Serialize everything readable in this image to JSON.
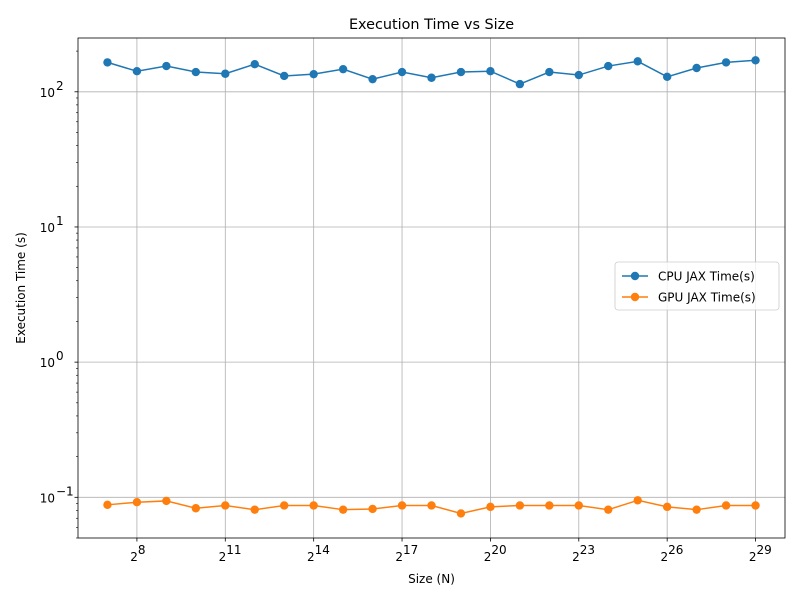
{
  "chart_data": {
    "type": "line",
    "title": "Execution Time vs Size",
    "xlabel": "Size (N)",
    "ylabel": "Execution Time (s)",
    "x_scale": "log2",
    "y_scale": "log10",
    "xlim": [
      64,
      1073741824
    ],
    "ylim": [
      0.05,
      250
    ],
    "x_ticks": [
      {
        "base": "2",
        "exp": "8",
        "value": 256
      },
      {
        "base": "2",
        "exp": "11",
        "value": 2048
      },
      {
        "base": "2",
        "exp": "14",
        "value": 16384
      },
      {
        "base": "2",
        "exp": "17",
        "value": 131072
      },
      {
        "base": "2",
        "exp": "20",
        "value": 1048576
      },
      {
        "base": "2",
        "exp": "23",
        "value": 8388608
      },
      {
        "base": "2",
        "exp": "26",
        "value": 67108864
      },
      {
        "base": "2",
        "exp": "29",
        "value": 536870912
      }
    ],
    "y_ticks": [
      {
        "base": "10",
        "exp": "−1",
        "value": 0.1
      },
      {
        "base": "10",
        "exp": "0",
        "value": 1
      },
      {
        "base": "10",
        "exp": "1",
        "value": 10
      },
      {
        "base": "10",
        "exp": "2",
        "value": 100
      }
    ],
    "grid": true,
    "legend_position": "center-right",
    "x": [
      128,
      256,
      512,
      1024,
      2048,
      4096,
      8192,
      16384,
      32768,
      65536,
      131072,
      262144,
      524288,
      1048576,
      2097152,
      4194304,
      8388608,
      16777216,
      33554432,
      67108864,
      134217728,
      268435456,
      536870912
    ],
    "series": [
      {
        "name": "CPU JAX Time(s)",
        "color": "#1f77b4",
        "values": [
          165,
          142,
          155,
          140,
          136,
          160,
          131,
          135,
          147,
          124,
          140,
          127,
          140,
          142,
          114,
          140,
          133,
          155,
          168,
          129,
          150,
          165,
          171
        ]
      },
      {
        "name": "GPU JAX Time(s)",
        "color": "#ff7f0e",
        "values": [
          0.088,
          0.092,
          0.094,
          0.083,
          0.087,
          0.081,
          0.087,
          0.087,
          0.081,
          0.082,
          0.087,
          0.087,
          0.076,
          0.085,
          0.087,
          0.087,
          0.087,
          0.081,
          0.095,
          0.085,
          0.081,
          0.087,
          0.087
        ]
      }
    ]
  }
}
